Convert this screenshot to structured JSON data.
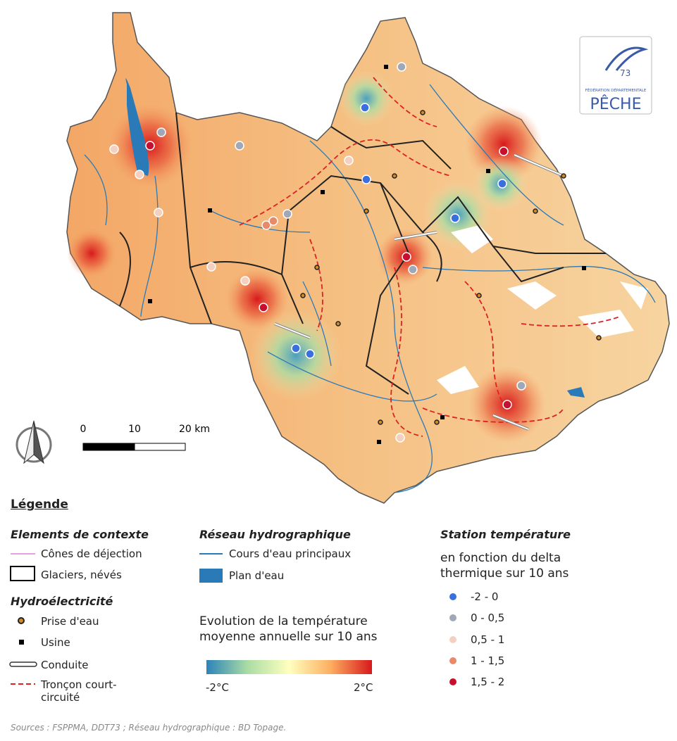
{
  "map": {
    "scale_bar": {
      "labels": [
        "0",
        "10",
        "20 km"
      ]
    }
  },
  "logo": {
    "number": "73",
    "org": "FÉDÉRATION DÉPARTEMENTALE",
    "name": "PÊCHE"
  },
  "legend": {
    "title": "Légende",
    "context": {
      "title": "Elements de contexte",
      "items": [
        "Cônes de déjection",
        "Glaciers, névés"
      ]
    },
    "hydro_power": {
      "title": "Hydroélectricité",
      "items": [
        "Prise d'eau",
        "Usine",
        "Conduite",
        "Tronçon court-circuité"
      ]
    },
    "network": {
      "title": "Réseau hydrographique",
      "items": [
        "Cours d'eau principaux",
        "Plan d'eau"
      ]
    },
    "temperature": {
      "title": "Evolution de la température moyenne annuelle sur 10 ans",
      "min_label": "-2°C",
      "max_label": "2°C"
    },
    "stations": {
      "title": "Station température",
      "subtitle": "en fonction du delta thermique sur 10 ans",
      "classes": [
        "-2 - 0",
        "0 - 0,5",
        "0,5 - 1",
        "1 - 1,5",
        "1,5 - 2"
      ]
    }
  },
  "sources": "Sources : FSPPMA, DDT73 ; Réseau hydrographique : BD Topage."
}
